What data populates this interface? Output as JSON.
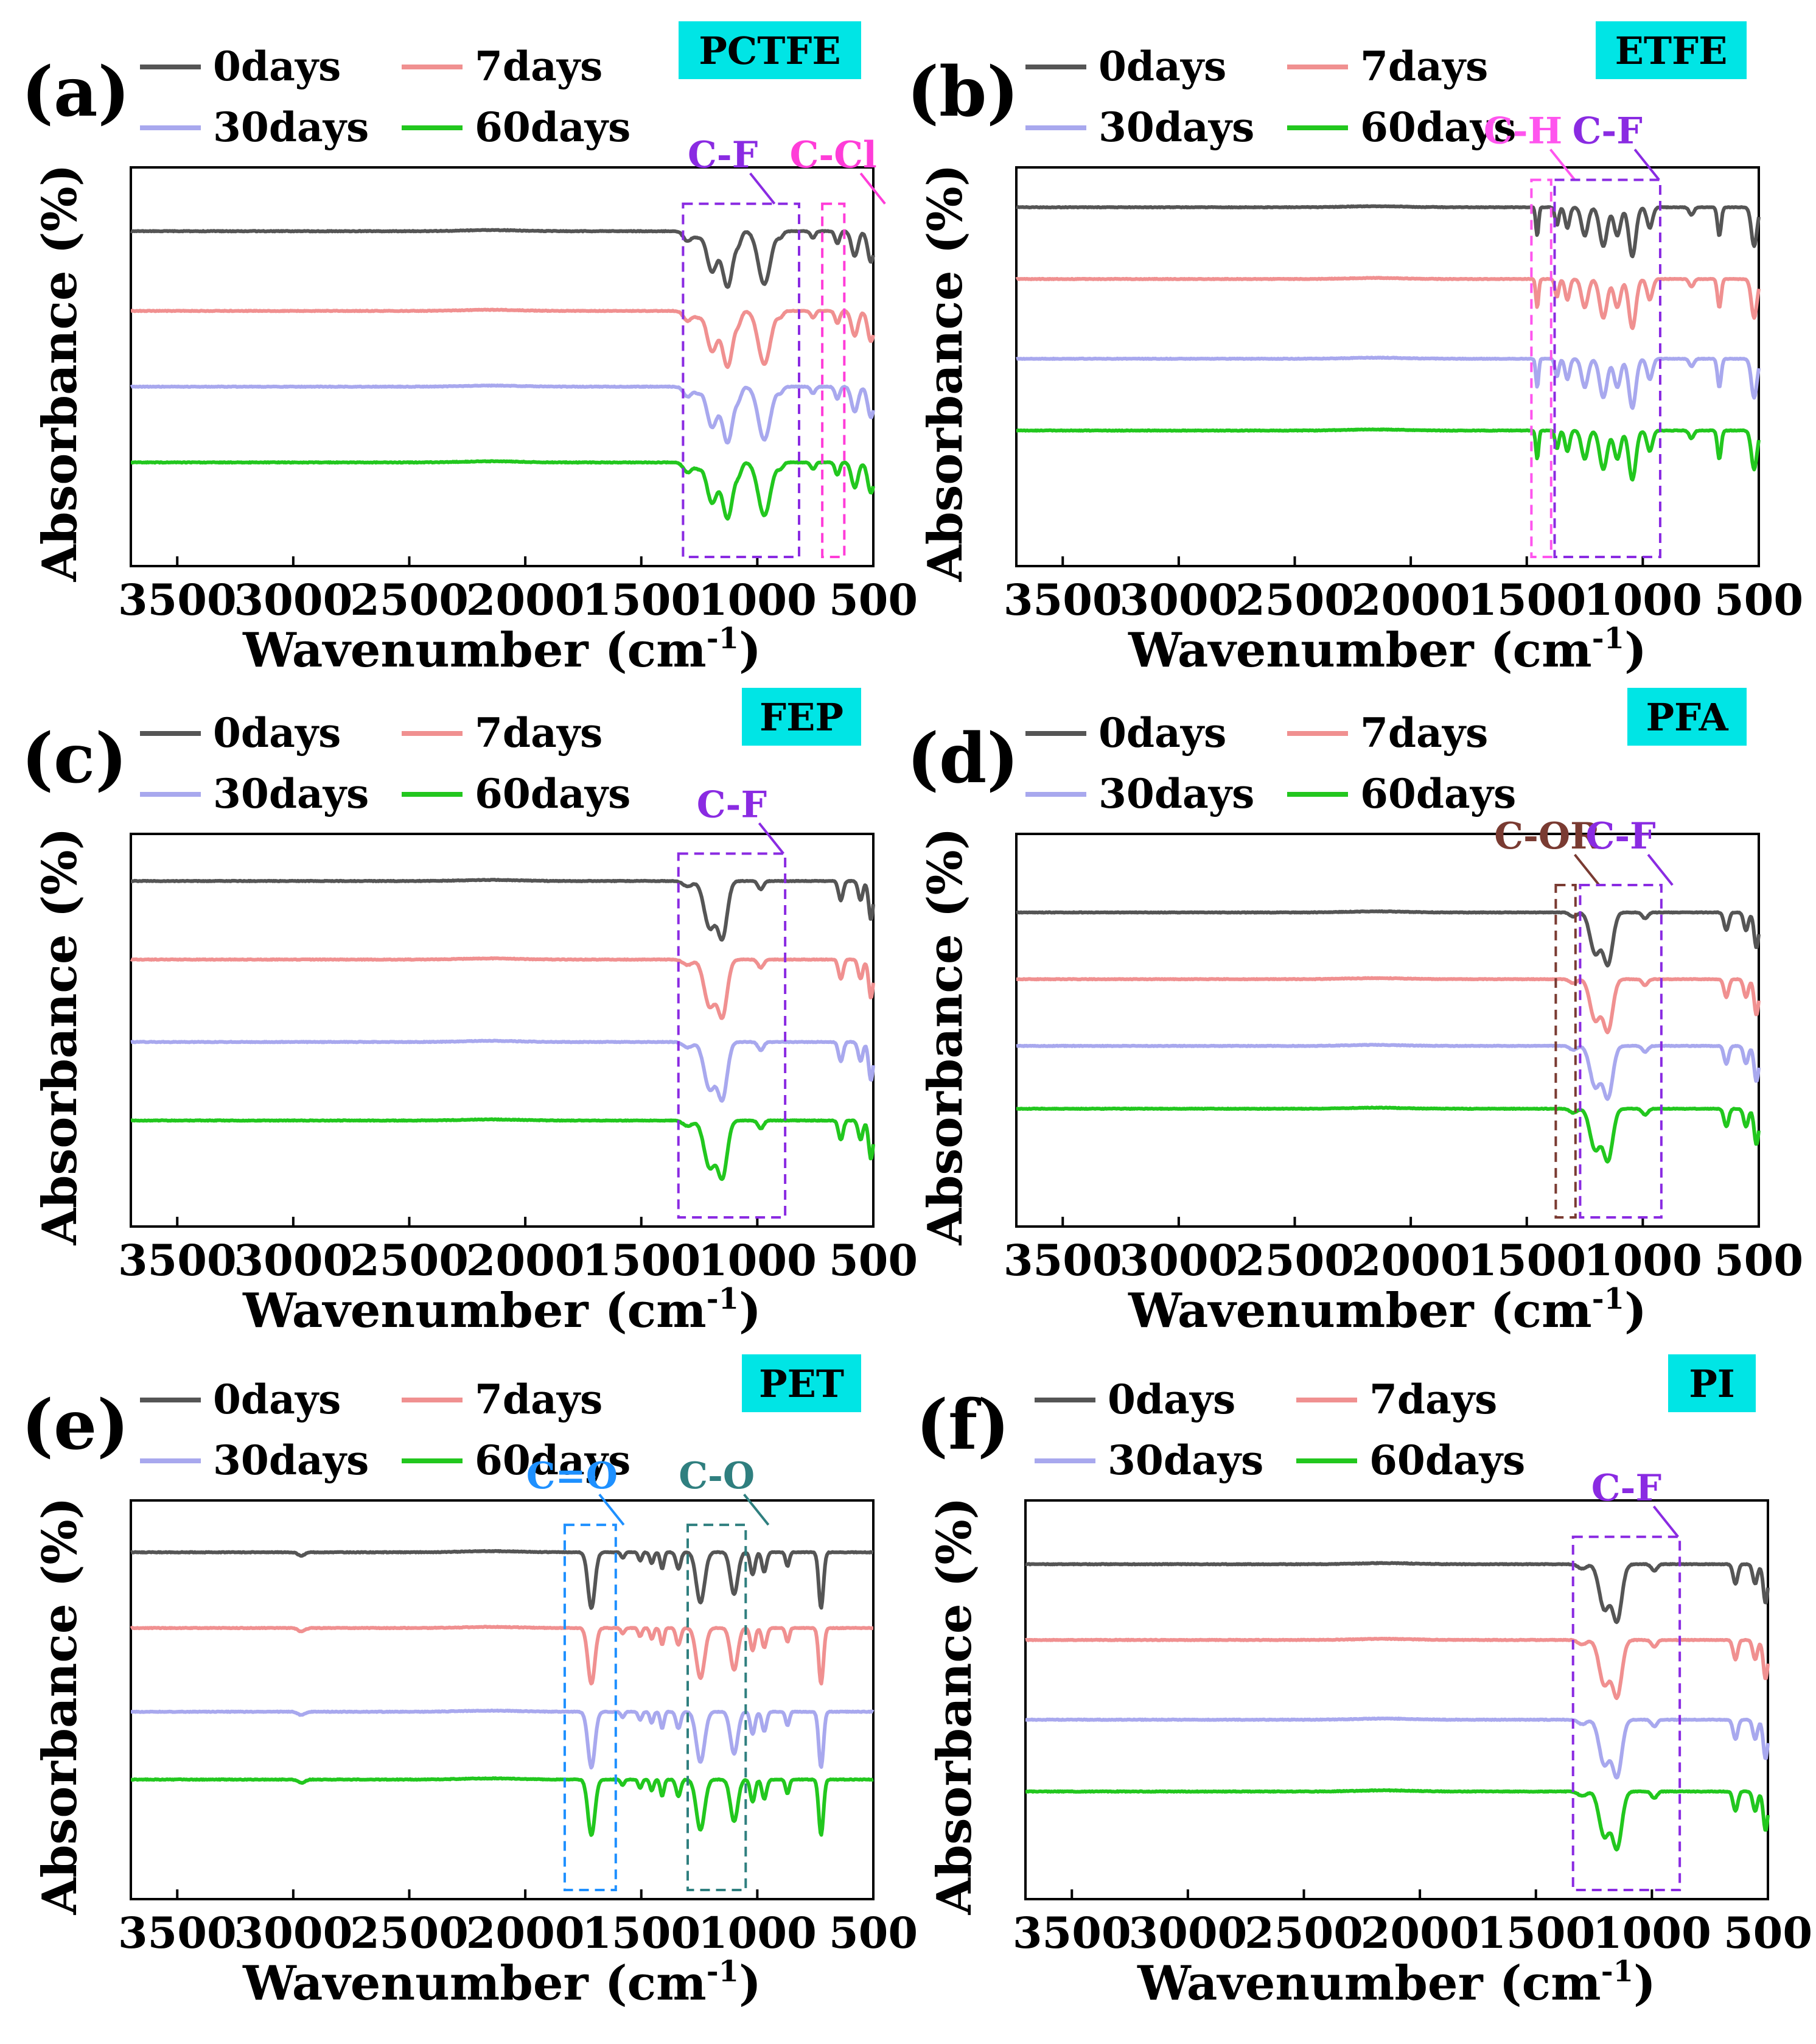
{
  "figure": {
    "xlabel": "Wavenumber (cm-1)",
    "xlabel_main": "Wavenumber (cm",
    "xlabel_sup": "-1",
    "xlabel_close": ")",
    "ylabel": "Absorbance (%)",
    "legend": [
      {
        "label": "0days",
        "color": "#555555"
      },
      {
        "label": "7days",
        "color": "#f09090"
      },
      {
        "label": "30days",
        "color": "#a8a8ee"
      },
      {
        "label": "60days",
        "color": "#22c71e"
      }
    ],
    "sample_box_color": "#00e5e5"
  },
  "chart_data": [
    {
      "type": "line",
      "panel": "(a)",
      "sample": "PCTFE",
      "xlabel": "Wavenumber (cm-1)",
      "ylabel": "Absorbance (%)",
      "xlim": [
        3700,
        500
      ],
      "xticks": [
        3500,
        3000,
        2500,
        2000,
        1500,
        1000,
        500
      ],
      "series": [
        {
          "name": "0days",
          "baseline": 4
        },
        {
          "name": "7days",
          "baseline": 3
        },
        {
          "name": "30days",
          "baseline": 2
        },
        {
          "name": "60days",
          "baseline": 1
        }
      ],
      "peaks": [
        {
          "x": 1300,
          "depth": 0.18,
          "width": 18
        },
        {
          "x": 1255,
          "depth": 0.1,
          "width": 15
        },
        {
          "x": 1195,
          "depth": 0.72,
          "width": 22
        },
        {
          "x": 1128,
          "depth": 1.0,
          "width": 22
        },
        {
          "x": 1080,
          "depth": 0.18,
          "width": 12
        },
        {
          "x": 970,
          "depth": 0.95,
          "width": 26
        },
        {
          "x": 900,
          "depth": 0.1,
          "width": 12
        },
        {
          "x": 760,
          "depth": 0.12,
          "width": 10
        },
        {
          "x": 655,
          "depth": 0.22,
          "width": 10
        },
        {
          "x": 580,
          "depth": 0.45,
          "width": 14
        },
        {
          "x": 510,
          "depth": 0.55,
          "width": 14
        }
      ],
      "annotations": [
        {
          "label": "C-F",
          "color": "#8a2be2",
          "x_range": [
            1320,
            820
          ]
        },
        {
          "label": "C-Cl",
          "color": "#ff3dd8",
          "x_range": [
            720,
            625
          ]
        }
      ]
    },
    {
      "type": "line",
      "panel": "(b)",
      "sample": "ETFE",
      "xlabel": "Wavenumber (cm-1)",
      "ylabel": "Absorbance (%)",
      "xlim": [
        3700,
        500
      ],
      "xticks": [
        3500,
        3000,
        2500,
        2000,
        1500,
        1000,
        500
      ],
      "series": [
        {
          "name": "0days",
          "baseline": 4
        },
        {
          "name": "7days",
          "baseline": 3
        },
        {
          "name": "30days",
          "baseline": 2
        },
        {
          "name": "60days",
          "baseline": 1
        }
      ],
      "peaks": [
        {
          "x": 1455,
          "depth": 0.55,
          "width": 6
        },
        {
          "x": 1370,
          "depth": 0.35,
          "width": 8
        },
        {
          "x": 1325,
          "depth": 0.4,
          "width": 10
        },
        {
          "x": 1250,
          "depth": 0.55,
          "width": 14
        },
        {
          "x": 1170,
          "depth": 0.75,
          "width": 16
        },
        {
          "x": 1110,
          "depth": 0.55,
          "width": 14
        },
        {
          "x": 1045,
          "depth": 0.95,
          "width": 15
        },
        {
          "x": 970,
          "depth": 0.4,
          "width": 12
        },
        {
          "x": 790,
          "depth": 0.15,
          "width": 10
        },
        {
          "x": 670,
          "depth": 0.55,
          "width": 8
        },
        {
          "x": 520,
          "depth": 0.75,
          "width": 12
        }
      ],
      "annotations": [
        {
          "label": "C-H",
          "color": "#ff55ee",
          "x_range": [
            1480,
            1395
          ]
        },
        {
          "label": "C-F",
          "color": "#8a2be2",
          "x_range": [
            1380,
            925
          ]
        }
      ]
    },
    {
      "type": "line",
      "panel": "(c)",
      "sample": "FEP",
      "xlabel": "Wavenumber (cm-1)",
      "ylabel": "Absorbance (%)",
      "xlim": [
        3700,
        500
      ],
      "xticks": [
        3500,
        3000,
        2500,
        2000,
        1500,
        1000,
        500
      ],
      "series": [
        {
          "name": "0days",
          "baseline": 4
        },
        {
          "name": "7days",
          "baseline": 3
        },
        {
          "name": "30days",
          "baseline": 2
        },
        {
          "name": "60days",
          "baseline": 1
        }
      ],
      "peaks": [
        {
          "x": 1300,
          "depth": 0.1,
          "width": 20
        },
        {
          "x": 1205,
          "depth": 0.85,
          "width": 24
        },
        {
          "x": 1150,
          "depth": 1.0,
          "width": 20
        },
        {
          "x": 985,
          "depth": 0.15,
          "width": 12
        },
        {
          "x": 640,
          "depth": 0.35,
          "width": 10
        },
        {
          "x": 555,
          "depth": 0.35,
          "width": 10
        },
        {
          "x": 510,
          "depth": 0.7,
          "width": 10
        }
      ],
      "annotations": [
        {
          "label": "C-F",
          "color": "#8a2be2",
          "x_range": [
            1340,
            880
          ]
        }
      ]
    },
    {
      "type": "line",
      "panel": "(d)",
      "sample": "PFA",
      "xlabel": "Wavenumber (cm-1)",
      "ylabel": "Absorbance (%)",
      "xlim": [
        3700,
        500
      ],
      "xticks": [
        3500,
        3000,
        2500,
        2000,
        1500,
        1000,
        500
      ],
      "series": [
        {
          "name": "0days",
          "baseline": 4
        },
        {
          "name": "7days",
          "baseline": 3
        },
        {
          "name": "30days",
          "baseline": 2
        },
        {
          "name": "60days",
          "baseline": 1
        }
      ],
      "peaks": [
        {
          "x": 1300,
          "depth": 0.08,
          "width": 15
        },
        {
          "x": 1205,
          "depth": 0.8,
          "width": 22
        },
        {
          "x": 1150,
          "depth": 1.0,
          "width": 20
        },
        {
          "x": 990,
          "depth": 0.12,
          "width": 12
        },
        {
          "x": 640,
          "depth": 0.35,
          "width": 10
        },
        {
          "x": 555,
          "depth": 0.35,
          "width": 10
        },
        {
          "x": 510,
          "depth": 0.7,
          "width": 10
        }
      ],
      "annotations": [
        {
          "label": "C-OR",
          "color": "#7a3b32",
          "x_range": [
            1375,
            1290
          ]
        },
        {
          "label": "C-F",
          "color": "#8a2be2",
          "x_range": [
            1270,
            920
          ]
        }
      ]
    },
    {
      "type": "line",
      "panel": "(e)",
      "sample": "PET",
      "xlabel": "Wavenumber (cm-1)",
      "ylabel": "Absorbance (%)",
      "xlim": [
        3700,
        500
      ],
      "xticks": [
        3500,
        3000,
        2500,
        2000,
        1500,
        1000,
        500
      ],
      "series": [
        {
          "name": "0days",
          "baseline": 4
        },
        {
          "name": "7days",
          "baseline": 3
        },
        {
          "name": "30days",
          "baseline": 2
        },
        {
          "name": "60days",
          "baseline": 1
        }
      ],
      "peaks": [
        {
          "x": 2965,
          "depth": 0.06,
          "width": 15
        },
        {
          "x": 1715,
          "depth": 1.0,
          "width": 15
        },
        {
          "x": 1580,
          "depth": 0.1,
          "width": 8
        },
        {
          "x": 1505,
          "depth": 0.15,
          "width": 8
        },
        {
          "x": 1455,
          "depth": 0.2,
          "width": 8
        },
        {
          "x": 1410,
          "depth": 0.3,
          "width": 8
        },
        {
          "x": 1340,
          "depth": 0.3,
          "width": 10
        },
        {
          "x": 1245,
          "depth": 0.9,
          "width": 18
        },
        {
          "x": 1100,
          "depth": 0.75,
          "width": 16
        },
        {
          "x": 1020,
          "depth": 0.4,
          "width": 10
        },
        {
          "x": 970,
          "depth": 0.35,
          "width": 10
        },
        {
          "x": 870,
          "depth": 0.25,
          "width": 8
        },
        {
          "x": 725,
          "depth": 1.0,
          "width": 10
        }
      ],
      "annotations": [
        {
          "label": "C=O",
          "color": "#1e90ff",
          "x_range": [
            1830,
            1610
          ]
        },
        {
          "label": "C-O",
          "color": "#2f7f7f",
          "x_range": [
            1300,
            1050
          ]
        }
      ]
    },
    {
      "type": "line",
      "panel": "(f)",
      "sample": "PI",
      "xlabel": "Wavenumber (cm-1)",
      "ylabel": "Absorbance (%)",
      "xlim": [
        3700,
        500
      ],
      "xticks": [
        3500,
        3000,
        2500,
        2000,
        1500,
        1000,
        500
      ],
      "series": [
        {
          "name": "0days",
          "baseline": 4
        },
        {
          "name": "7days",
          "baseline": 3
        },
        {
          "name": "30days",
          "baseline": 2
        },
        {
          "name": "60days",
          "baseline": 1
        }
      ],
      "peaks": [
        {
          "x": 1300,
          "depth": 0.08,
          "width": 18
        },
        {
          "x": 1205,
          "depth": 0.8,
          "width": 22
        },
        {
          "x": 1150,
          "depth": 1.0,
          "width": 20
        },
        {
          "x": 990,
          "depth": 0.12,
          "width": 12
        },
        {
          "x": 640,
          "depth": 0.35,
          "width": 10
        },
        {
          "x": 555,
          "depth": 0.35,
          "width": 10
        },
        {
          "x": 510,
          "depth": 0.7,
          "width": 10
        }
      ],
      "annotations": [
        {
          "label": "C-F",
          "color": "#8a2be2",
          "x_range": [
            1340,
            880
          ]
        }
      ]
    }
  ]
}
